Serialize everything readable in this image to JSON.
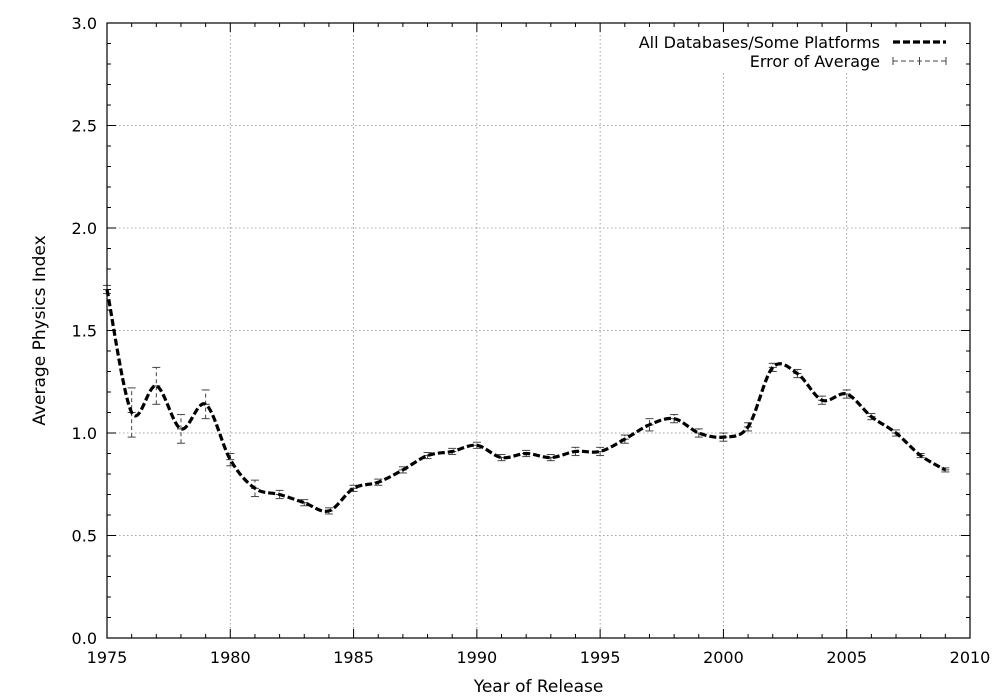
{
  "chart_data": {
    "type": "line",
    "title": "",
    "xlabel": "Year of Release",
    "ylabel": "Average Physics Index",
    "xlim": [
      1975,
      2010
    ],
    "ylim": [
      0,
      3.0
    ],
    "x_ticks": [
      "1975",
      "1980",
      "1985",
      "1990",
      "1995",
      "2000",
      "2005",
      "2010"
    ],
    "y_ticks": [
      "0.0",
      "0.5",
      "1.0",
      "1.5",
      "2.0",
      "2.5",
      "3.0"
    ],
    "grid": true,
    "legend_position": "top-right",
    "series": [
      {
        "name": "All Databases/Some Platforms",
        "style": "thick-dashed-line",
        "x": [
          1975,
          1976,
          1977,
          1978,
          1979,
          1980,
          1981,
          1982,
          1983,
          1984,
          1985,
          1986,
          1987,
          1988,
          1989,
          1990,
          1991,
          1992,
          1993,
          1994,
          1995,
          1996,
          1997,
          1998,
          1999,
          2000,
          2001,
          2002,
          2003,
          2004,
          2005,
          2006,
          2007,
          2008,
          2009
        ],
        "y": [
          1.7,
          1.1,
          1.23,
          1.02,
          1.14,
          0.87,
          0.73,
          0.7,
          0.66,
          0.62,
          0.73,
          0.76,
          0.82,
          0.89,
          0.91,
          0.94,
          0.88,
          0.9,
          0.88,
          0.91,
          0.91,
          0.97,
          1.04,
          1.07,
          1.0,
          0.98,
          1.03,
          1.32,
          1.29,
          1.16,
          1.19,
          1.08,
          1.0,
          0.89,
          0.82
        ]
      },
      {
        "name": "Error of Average",
        "style": "error-bars",
        "x": [
          1975,
          1976,
          1977,
          1978,
          1979,
          1980,
          1981,
          1982,
          1983,
          1984,
          1985,
          1986,
          1987,
          1988,
          1989,
          1990,
          1991,
          1992,
          1993,
          1994,
          1995,
          1996,
          1997,
          1998,
          1999,
          2000,
          2001,
          2002,
          2003,
          2004,
          2005,
          2006,
          2007,
          2008,
          2009
        ],
        "y": [
          1.7,
          1.1,
          1.23,
          1.02,
          1.14,
          0.87,
          0.73,
          0.7,
          0.66,
          0.62,
          0.73,
          0.76,
          0.82,
          0.89,
          0.91,
          0.94,
          0.88,
          0.9,
          0.88,
          0.91,
          0.91,
          0.97,
          1.04,
          1.07,
          1.0,
          0.98,
          1.03,
          1.32,
          1.29,
          1.16,
          1.19,
          1.08,
          1.0,
          0.89,
          0.82
        ],
        "error": [
          0.02,
          0.12,
          0.09,
          0.07,
          0.07,
          0.03,
          0.04,
          0.02,
          0.015,
          0.015,
          0.015,
          0.015,
          0.015,
          0.015,
          0.015,
          0.015,
          0.015,
          0.015,
          0.015,
          0.02,
          0.02,
          0.02,
          0.03,
          0.02,
          0.02,
          0.02,
          0.02,
          0.02,
          0.02,
          0.02,
          0.02,
          0.015,
          0.015,
          0.01,
          0.01
        ]
      }
    ]
  }
}
